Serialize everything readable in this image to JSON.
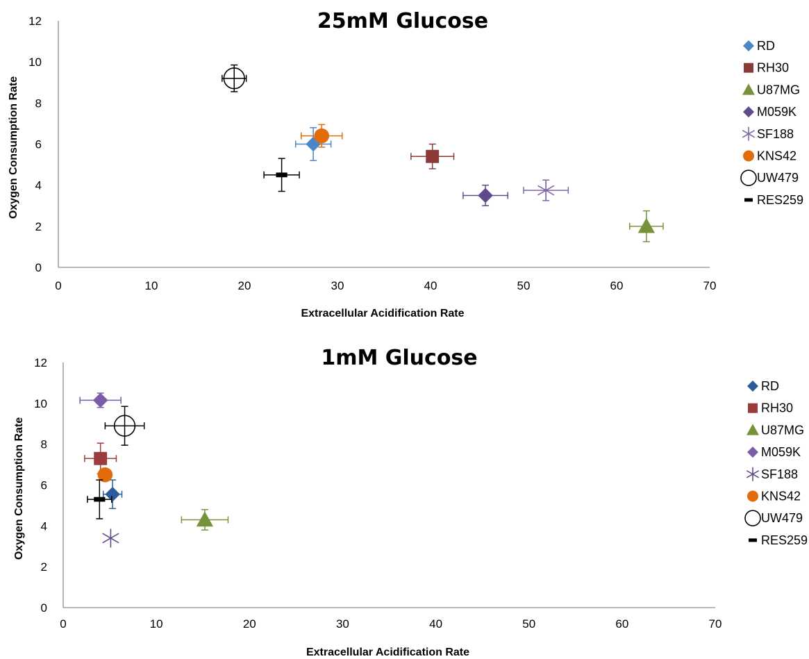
{
  "chart_data": [
    {
      "type": "scatter",
      "title": "25mM Glucose",
      "xlabel": "Extracellular Acidification Rate",
      "ylabel": "Oxygen Consumption Rate",
      "xlim": [
        0,
        70
      ],
      "ylim": [
        0,
        12
      ],
      "xticks": [
        "0",
        "10",
        "20",
        "30",
        "40",
        "50",
        "60",
        "70"
      ],
      "yticks": [
        "0",
        "2",
        "4",
        "6",
        "8",
        "10",
        "12"
      ],
      "grid": false,
      "legend_position": "right",
      "series": [
        {
          "name": "RD",
          "marker": "diamond",
          "color": "#4a86c8",
          "x": 27.4,
          "y": 6.0,
          "xerr": 1.9,
          "yerr": 0.8
        },
        {
          "name": "RH30",
          "marker": "square",
          "color": "#8b3a3a",
          "x": 40.2,
          "y": 5.4,
          "xerr": 2.3,
          "yerr": 0.6
        },
        {
          "name": "U87MG",
          "marker": "triangle",
          "color": "#76933c",
          "x": 63.2,
          "y": 2.0,
          "xerr": 1.8,
          "yerr": 0.75
        },
        {
          "name": "M059K",
          "marker": "diamond",
          "color": "#5f4b8b",
          "x": 45.9,
          "y": 3.5,
          "xerr": 2.4,
          "yerr": 0.5
        },
        {
          "name": "SF188",
          "marker": "star",
          "color": "#7f66a8",
          "x": 52.4,
          "y": 3.75,
          "xerr": 2.4,
          "yerr": 0.5
        },
        {
          "name": "KNS42",
          "marker": "circle",
          "color": "#e36c0a",
          "x": 28.3,
          "y": 6.4,
          "xerr": 2.2,
          "yerr": 0.55
        },
        {
          "name": "UW479",
          "marker": "open-circle",
          "color": "#000000",
          "x": 18.9,
          "y": 9.2,
          "xerr": 1.3,
          "yerr": 0.65
        },
        {
          "name": "RES259",
          "marker": "dash",
          "color": "#000000",
          "x": 24.0,
          "y": 4.5,
          "xerr": 1.9,
          "yerr": 0.8
        }
      ]
    },
    {
      "type": "scatter",
      "title": "1mM Glucose",
      "xlabel": "Extracellular Acidification Rate",
      "ylabel": "Oxygen Consumption Rate",
      "xlim": [
        0,
        70
      ],
      "ylim": [
        0,
        12
      ],
      "xticks": [
        "0",
        "10",
        "20",
        "30",
        "40",
        "50",
        "60",
        "70"
      ],
      "yticks": [
        "0",
        "2",
        "4",
        "6",
        "8",
        "10",
        "12"
      ],
      "grid": false,
      "legend_position": "right",
      "series": [
        {
          "name": "RD",
          "marker": "diamond",
          "color": "#2e5c9a",
          "x": 5.3,
          "y": 5.55,
          "xerr": 1.0,
          "yerr": 0.7
        },
        {
          "name": "RH30",
          "marker": "square",
          "color": "#9b3b3b",
          "x": 4.0,
          "y": 7.3,
          "xerr": 1.7,
          "yerr": 0.75
        },
        {
          "name": "U87MG",
          "marker": "triangle",
          "color": "#76933c",
          "x": 15.2,
          "y": 4.3,
          "xerr": 2.5,
          "yerr": 0.5
        },
        {
          "name": "M059K",
          "marker": "diamond",
          "color": "#7a5ca8",
          "x": 4.0,
          "y": 10.15,
          "xerr": 2.2,
          "yerr": 0.35
        },
        {
          "name": "SF188",
          "marker": "star",
          "color": "#5f4b8b",
          "x": 5.1,
          "y": 3.4,
          "xerr": 0,
          "yerr": 0
        },
        {
          "name": "KNS42",
          "marker": "circle",
          "color": "#e36c0a",
          "x": 4.5,
          "y": 6.5,
          "xerr": 0,
          "yerr": 0
        },
        {
          "name": "UW479",
          "marker": "open-circle",
          "color": "#000000",
          "x": 6.6,
          "y": 8.9,
          "xerr": 2.1,
          "yerr": 0.95
        },
        {
          "name": "RES259",
          "marker": "dash",
          "color": "#000000",
          "x": 3.9,
          "y": 5.3,
          "xerr": 1.3,
          "yerr": 0.95
        }
      ]
    }
  ]
}
